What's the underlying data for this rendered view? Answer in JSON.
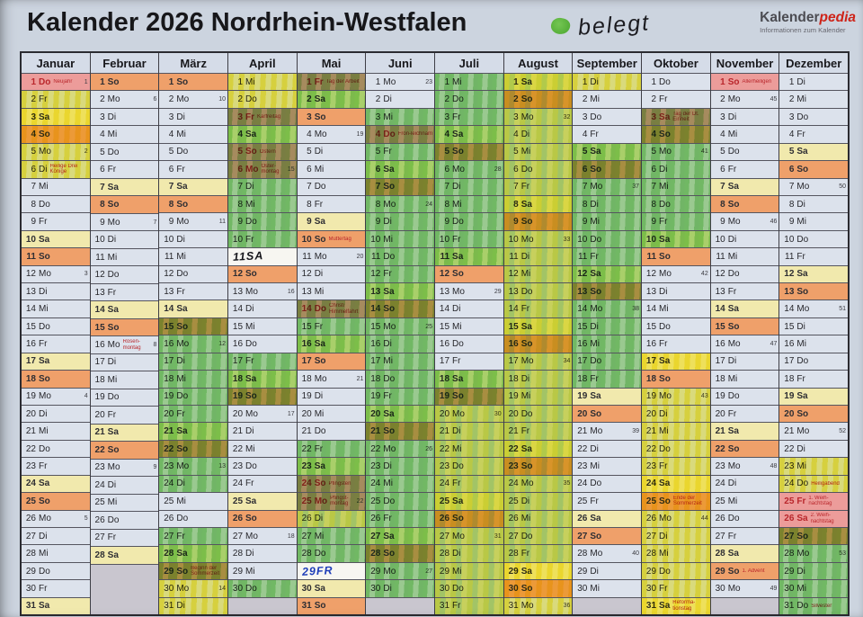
{
  "header": {
    "title": "Kalender 2026 Nordrhein-Westfalen",
    "annotation": "belegt",
    "legend_dot_color": "#55b437",
    "logo": {
      "part1": "Kalender",
      "part2": "pedia",
      "subtitle": "Informationen zum Kalender"
    }
  },
  "colors": {
    "saturday": "#f1e9ad",
    "sunday": "#efa06a",
    "holiday": "#ec9c9a",
    "weekday": "#dce2ec",
    "empty": "#c9c6cf",
    "holiday_text": "#b9262b",
    "highlight_green": "#5cbf42",
    "highlight_yellow": "#f7e71a"
  },
  "calendar": {
    "weekday_names": [
      "Mo",
      "Di",
      "Mi",
      "Do",
      "Fr",
      "Sa",
      "So"
    ],
    "months": [
      {
        "name": "Januar",
        "first": "Do",
        "num_days": 31,
        "weeks": {
          "1": 1,
          "5": 2,
          "12": 3,
          "19": 4,
          "26": 5
        },
        "notes": [
          {
            "d": 1,
            "text": "Neujahr",
            "holiday": true
          },
          {
            "d": 6,
            "text": "Heilige Drei Könige",
            "holiday": false
          }
        ],
        "marks": [
          {
            "from": 2,
            "to": 6,
            "color": "y"
          }
        ]
      },
      {
        "name": "Februar",
        "first": "So",
        "num_days": 28,
        "weeks": {
          "2": 6,
          "9": 7,
          "16": 8,
          "23": 9
        },
        "notes": [
          {
            "d": 16,
            "text": "Rosen-montag",
            "holiday": false
          }
        ],
        "marks": []
      },
      {
        "name": "März",
        "first": "So",
        "num_days": 31,
        "weeks": {
          "2": 10,
          "9": 11,
          "16": 12,
          "23": 13,
          "30": 14
        },
        "notes": [
          {
            "d": 29,
            "text": "Beginn der Sommerzeit",
            "holiday": false
          }
        ],
        "marks": [
          {
            "from": 15,
            "to": 24,
            "color": "g"
          },
          {
            "from": 27,
            "to": 29,
            "color": "g"
          },
          {
            "from": 30,
            "to": 31,
            "color": "y"
          }
        ]
      },
      {
        "name": "April",
        "first": "Mi",
        "num_days": 30,
        "weeks": {
          "6": 15,
          "13": 16,
          "20": 17,
          "27": 18
        },
        "notes": [
          {
            "d": 3,
            "text": "Karfreitag",
            "holiday": true
          },
          {
            "d": 5,
            "text": "Ostern",
            "holiday": true
          },
          {
            "d": 6,
            "text": "Oster-montag",
            "holiday": true
          }
        ],
        "marks": [
          {
            "from": 1,
            "to": 2,
            "color": "y"
          },
          {
            "from": 3,
            "to": 10,
            "color": "g"
          },
          {
            "from": 17,
            "to": 19,
            "color": "g"
          },
          {
            "from": 30,
            "to": 30,
            "color": "g"
          }
        ],
        "handwritten": [
          {
            "d": 11,
            "text": "11SA",
            "ink": "black"
          }
        ]
      },
      {
        "name": "Mai",
        "first": "Fr",
        "num_days": 31,
        "weeks": {
          "4": 19,
          "11": 20,
          "18": 21,
          "25": 22
        },
        "notes": [
          {
            "d": 1,
            "text": "Tag der Arbeit",
            "holiday": true
          },
          {
            "d": 10,
            "text": "Muttertag",
            "holiday": false
          },
          {
            "d": 14,
            "text": "Christi Himmelfahrt",
            "holiday": true
          },
          {
            "d": 24,
            "text": "Pfingsten",
            "holiday": true
          },
          {
            "d": 25,
            "text": "Pfingst-montag",
            "holiday": true
          }
        ],
        "marks": [
          {
            "from": 1,
            "to": 2,
            "color": "g"
          },
          {
            "from": 14,
            "to": 16,
            "color": "g"
          },
          {
            "from": 22,
            "to": 25,
            "color": "g"
          },
          {
            "from": 26,
            "to": 26,
            "color": "yg"
          },
          {
            "from": 27,
            "to": 28,
            "color": "g"
          }
        ],
        "handwritten": [
          {
            "d": 29,
            "text": "29FR",
            "ink": "blue"
          }
        ]
      },
      {
        "name": "Juni",
        "first": "Mo",
        "num_days": 30,
        "weeks": {
          "1": 23,
          "8": 24,
          "15": 25,
          "22": 26,
          "29": 27
        },
        "notes": [
          {
            "d": 4,
            "text": "Fron-leichnam",
            "holiday": true
          }
        ],
        "marks": [
          {
            "from": 3,
            "to": 30,
            "color": "g"
          }
        ]
      },
      {
        "name": "Juli",
        "first": "Mi",
        "num_days": 31,
        "weeks": {
          "6": 28,
          "13": 29,
          "20": 30,
          "27": 31
        },
        "notes": [],
        "marks": [
          {
            "from": 1,
            "to": 11,
            "color": "g"
          },
          {
            "from": 18,
            "to": 19,
            "color": "g"
          },
          {
            "from": 20,
            "to": 31,
            "color": "yg"
          }
        ]
      },
      {
        "name": "August",
        "first": "Sa",
        "num_days": 31,
        "weeks": {
          "3": 32,
          "10": 33,
          "17": 34,
          "24": 35,
          "31": 36
        },
        "notes": [],
        "marks": [
          {
            "from": 1,
            "to": 28,
            "color": "yg"
          },
          {
            "from": 29,
            "to": 31,
            "color": "y"
          }
        ]
      },
      {
        "name": "September",
        "first": "Di",
        "num_days": 30,
        "weeks": {
          "7": 37,
          "14": 38,
          "21": 39,
          "28": 40
        },
        "notes": [],
        "marks": [
          {
            "from": 1,
            "to": 1,
            "color": "y"
          },
          {
            "from": 5,
            "to": 18,
            "color": "g"
          }
        ]
      },
      {
        "name": "Oktober",
        "first": "Do",
        "num_days": 31,
        "weeks": {
          "5": 41,
          "12": 42,
          "19": 43,
          "26": 44
        },
        "notes": [
          {
            "d": 3,
            "text": "Tag der Dt. Einheit",
            "holiday": true
          },
          {
            "d": 25,
            "text": "Ende der Sommerzeit",
            "holiday": false
          },
          {
            "d": 31,
            "text": "Reforma-tionstag",
            "holiday": false
          }
        ],
        "marks": [
          {
            "from": 3,
            "to": 10,
            "color": "g"
          },
          {
            "from": 17,
            "to": 17,
            "color": "y"
          },
          {
            "from": 19,
            "to": 31,
            "color": "y"
          }
        ]
      },
      {
        "name": "November",
        "first": "So",
        "num_days": 30,
        "weeks": {
          "2": 45,
          "9": 46,
          "16": 47,
          "23": 48,
          "30": 49
        },
        "notes": [
          {
            "d": 1,
            "text": "Allerheiligen",
            "holiday": true
          },
          {
            "d": 29,
            "text": "1. Advent",
            "holiday": false
          }
        ],
        "marks": []
      },
      {
        "name": "Dezember",
        "first": "Di",
        "num_days": 31,
        "weeks": {
          "7": 50,
          "14": 51,
          "21": 52,
          "28": 53
        },
        "notes": [
          {
            "d": 24,
            "text": "Heiligabend",
            "holiday": false
          },
          {
            "d": 25,
            "text": "1. Weih-nachtstag",
            "holiday": true
          },
          {
            "d": 26,
            "text": "2. Weih-nachtstag",
            "holiday": true
          },
          {
            "d": 31,
            "text": "Silvester",
            "holiday": false
          }
        ],
        "marks": [
          {
            "from": 23,
            "to": 24,
            "color": "y"
          },
          {
            "from": 27,
            "to": 31,
            "color": "g"
          }
        ]
      }
    ]
  }
}
